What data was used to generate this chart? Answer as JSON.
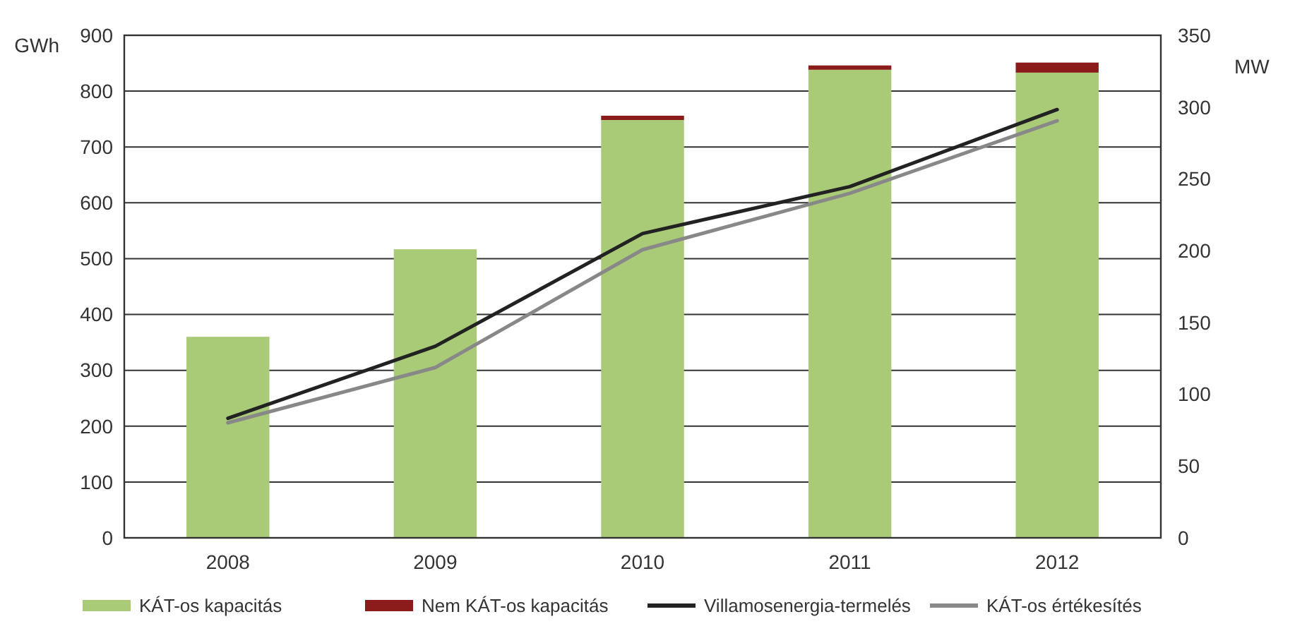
{
  "chart_data": {
    "type": "bar",
    "categories": [
      "2008",
      "2009",
      "2010",
      "2011",
      "2012"
    ],
    "ylabel": "GWh",
    "y2label": "MW",
    "ylim": [
      0,
      900
    ],
    "yticks": [
      0,
      100,
      200,
      300,
      400,
      500,
      600,
      700,
      800,
      900
    ],
    "y2lim": [
      0,
      350
    ],
    "y2ticks": [
      0,
      50,
      100,
      150,
      200,
      250,
      300,
      350
    ],
    "stacked": true,
    "grid": "y",
    "legend": "bottom",
    "series": [
      {
        "name": "KÁT-os kapacitás",
        "axis": "y2",
        "color": "#a9cb78",
        "values": [
          140,
          201,
          291,
          326,
          324
        ]
      },
      {
        "name": "Nem KÁT-os kapacitás",
        "axis": "y2",
        "color": "#8b1a1a",
        "values": [
          null,
          null,
          3,
          3,
          7
        ]
      },
      {
        "name": "Villamosenergia-termelés",
        "type": "line",
        "color": "#222222",
        "values": [
          214,
          343,
          545,
          629,
          767
        ]
      },
      {
        "name": "KÁT-os értékesítés",
        "type": "line",
        "color": "#888888",
        "values": [
          206,
          305,
          516,
          617,
          747
        ]
      }
    ]
  }
}
